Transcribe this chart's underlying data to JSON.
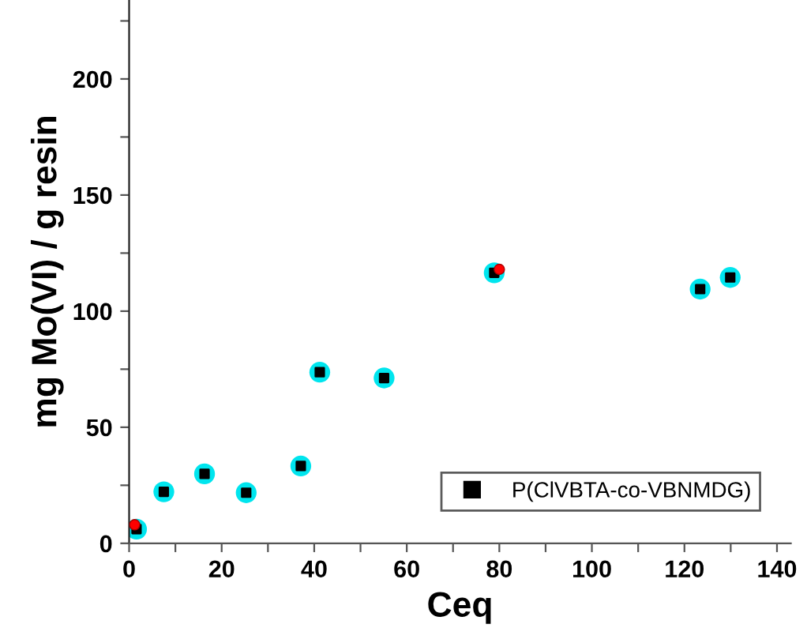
{
  "chart_data": {
    "type": "scatter",
    "xlabel": "Ceq",
    "ylabel": "mg Mo(VI) / g resin",
    "xlim": [
      0,
      143
    ],
    "ylim": [
      0,
      234
    ],
    "xticks": [
      0,
      {
        "value": 10,
        "label": null
      },
      20,
      {
        "value": 30,
        "label": null
      },
      40,
      {
        "value": 50,
        "label": null
      },
      60,
      {
        "value": 70,
        "label": null
      },
      80,
      {
        "value": 90,
        "label": null
      },
      100,
      {
        "value": 110,
        "label": null
      },
      120,
      {
        "value": 130,
        "label": null
      },
      140
    ],
    "yticks": [
      0,
      {
        "value": 25,
        "label": null
      },
      50,
      {
        "value": 75,
        "label": null
      },
      100,
      {
        "value": 125,
        "label": null
      },
      150,
      {
        "value": 175,
        "label": null
      },
      200,
      {
        "value": 225,
        "label": null
      }
    ],
    "grid": false,
    "legend": "bottom right",
    "series": [
      {
        "name": "P(ClVBTA-co-VBNMDG)",
        "color": "#000000",
        "marker": "square",
        "x": [
          1.6,
          7.5,
          16.3,
          25.3,
          37.1,
          41.2,
          55.1,
          78.9,
          123.4,
          129.9
        ],
        "values": [
          6.1,
          22.2,
          29.9,
          21.8,
          33.3,
          73.7,
          71.2,
          116.5,
          109.5,
          114.5
        ]
      },
      {
        "color": "#ff0000",
        "marker": "circle",
        "x": [
          1.2,
          80.0
        ],
        "values": [
          8,
          118
        ]
      }
    ]
  }
}
